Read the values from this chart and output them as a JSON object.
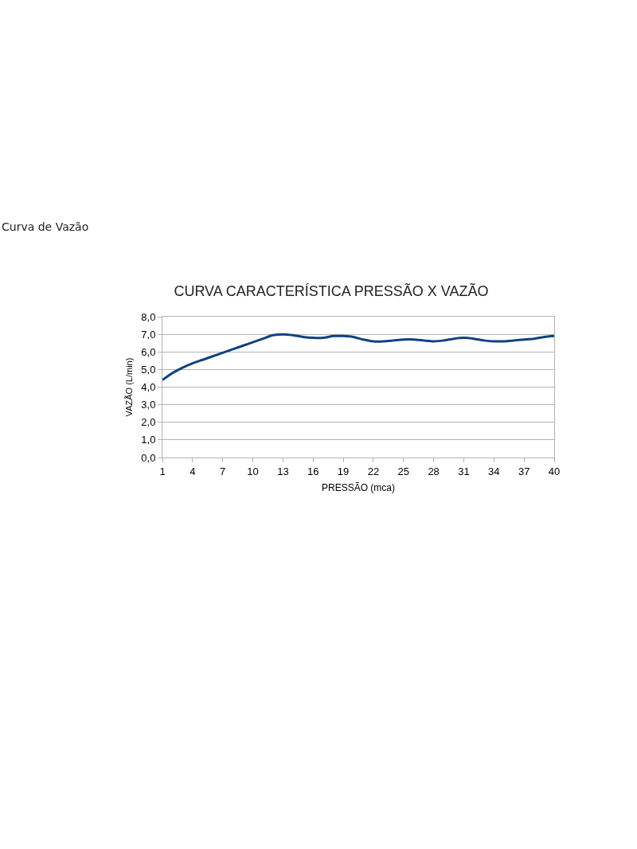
{
  "chart_data": {
    "type": "line",
    "title": "CURVA CARACTERÍSTICA PRESSÃO X VAZÃO",
    "subtitle": "Curva de Vazão",
    "xlabel": "PRESSÃO (mca)",
    "ylabel": "VAZÃO (L/min)",
    "x": [
      1,
      2,
      3,
      4,
      5,
      6,
      7,
      8,
      9,
      10,
      11,
      12,
      13,
      14,
      15,
      16,
      17,
      18,
      19,
      20,
      21,
      22,
      23,
      24,
      25,
      26,
      27,
      28,
      29,
      30,
      31,
      32,
      33,
      34,
      35,
      36,
      37,
      38,
      39,
      40
    ],
    "series": [
      {
        "color": "#0f4280",
        "values": [
          4.4,
          4.8,
          5.1,
          5.35,
          5.55,
          5.75,
          5.95,
          6.15,
          6.35,
          6.55,
          6.75,
          6.95,
          7.0,
          6.95,
          6.85,
          6.8,
          6.8,
          6.9,
          6.9,
          6.85,
          6.7,
          6.6,
          6.6,
          6.65,
          6.7,
          6.7,
          6.65,
          6.6,
          6.65,
          6.75,
          6.8,
          6.75,
          6.65,
          6.6,
          6.6,
          6.65,
          6.7,
          6.75,
          6.85,
          6.9
        ]
      }
    ],
    "xlim": [
      1,
      40
    ],
    "xticks": [
      1,
      4,
      7,
      10,
      13,
      16,
      19,
      22,
      25,
      28,
      31,
      34,
      37,
      40
    ],
    "ylim": [
      0,
      8
    ],
    "yticks": [
      {
        "value": 0,
        "label": "0,0"
      },
      {
        "value": 1,
        "label": "1,0"
      },
      {
        "value": 2,
        "label": "2,0"
      },
      {
        "value": 3,
        "label": "3,0"
      },
      {
        "value": 4,
        "label": "4,0"
      },
      {
        "value": 5,
        "label": "5,0"
      },
      {
        "value": 6,
        "label": "6,0"
      },
      {
        "value": 7,
        "label": "7,0"
      },
      {
        "value": 8,
        "label": "8,0"
      }
    ],
    "grid": "y",
    "marker": "none",
    "line_style": "solid"
  }
}
